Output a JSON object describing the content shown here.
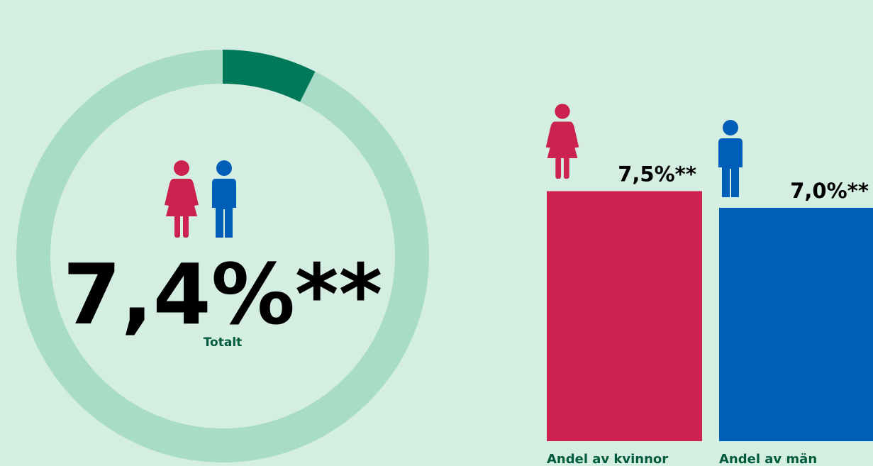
{
  "chart_data": [
    {
      "type": "donut",
      "categories": [
        "Totalt"
      ],
      "values": [
        7.4
      ],
      "value_labels": [
        "7,4%**"
      ],
      "color": "#00785a",
      "track_color": "#a9dcc7"
    },
    {
      "type": "bar",
      "categories": [
        "Andel av kvinnor",
        "Andel av män"
      ],
      "values": [
        7.5,
        7.0
      ],
      "value_labels": [
        "7,5%**",
        "7,0%**"
      ],
      "colors": [
        "#cc224f",
        "#005eb8"
      ],
      "ylim": [
        0,
        8
      ]
    }
  ]
}
